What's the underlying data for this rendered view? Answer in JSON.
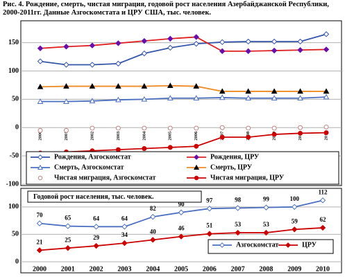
{
  "chart_data": [
    {
      "type": "line",
      "title": "Рис. 4. Рождение, смерть, чистая миграция, годовой рост населения Азербайджанской Республики, 2000-2011гг. Данные Азгоскомстата и ЦРУ США, тыс. человек.",
      "categories": [
        "2000",
        "2001",
        "2002",
        "2003",
        "2004",
        "2005",
        "2006",
        "2007",
        "2008",
        "2009",
        "2010",
        "2011"
      ],
      "series": [
        {
          "name": "Рождения, Азгоскомстат",
          "color": "#3355aa",
          "marker": "diamond-open",
          "marker_color": "#3355aa",
          "show_line": true,
          "values": [
            117,
            111,
            111,
            113,
            131,
            141,
            148,
            151,
            152,
            152,
            152,
            165
          ]
        },
        {
          "name": "Рождения, ЦРУ",
          "color": "#e02020",
          "marker": "diamond",
          "marker_color": "#6a0dad",
          "show_line": true,
          "values": [
            140,
            143,
            145,
            149,
            153,
            157,
            160,
            135,
            135,
            136,
            137,
            138
          ]
        },
        {
          "name": "Смерть, Азгоскомстат",
          "color": "#4a6fc0",
          "marker": "triangle-open",
          "marker_color": "#4a6fc0",
          "show_line": true,
          "values": [
            46,
            46,
            47,
            49,
            50,
            52,
            52,
            53,
            52,
            52,
            52,
            54
          ]
        },
        {
          "name": "Смерть, ЦРУ",
          "color": "#f08a24",
          "marker": "triangle",
          "marker_color": "#000000",
          "show_line": true,
          "values": [
            72,
            73,
            73,
            73,
            73,
            74,
            73,
            64,
            64,
            64,
            64,
            64
          ]
        },
        {
          "name": "Чистая миграция, Азгоскомстат",
          "color": "#c08080",
          "marker": "circle-open",
          "marker_color": "#c08080",
          "show_line": false,
          "values": [
            -5,
            -5,
            -1,
            -1,
            -1,
            -1,
            -1,
            0,
            -1,
            -1,
            0,
            1
          ]
        },
        {
          "name": "Чистая миграция, ЦРУ",
          "color": "#cc0000",
          "marker": "circle",
          "marker_color": "#cc0000",
          "show_line": true,
          "values": [
            -45,
            -43,
            -41,
            -39,
            -37,
            -35,
            -33,
            -17,
            -17,
            -12,
            -10,
            -9
          ]
        }
      ],
      "ylim": [
        -100,
        185
      ],
      "yticks": [
        -100,
        -50,
        0,
        50,
        100,
        150
      ],
      "grid": true
    },
    {
      "type": "line",
      "title": "Годовой рост населения, тыс. человек.",
      "categories": [
        "2000",
        "2001",
        "2002",
        "2003",
        "2004",
        "2005",
        "2006",
        "2007",
        "2008",
        "2009",
        "2010"
      ],
      "series": [
        {
          "name": "Азгоскомстат",
          "color": "#4a6fc0",
          "marker": "diamond-open",
          "marker_color": "#4a6fc0",
          "show_line": true,
          "values": [
            70,
            65,
            64,
            64,
            82,
            90,
            97,
            98,
            99,
            100,
            112
          ]
        },
        {
          "name": "ЦРУ",
          "color": "#cc0000",
          "marker": "diamond",
          "marker_color": "#cc0000",
          "show_line": true,
          "values": [
            21,
            25,
            29,
            34,
            40,
            46,
            51,
            53,
            53,
            59,
            62
          ]
        }
      ],
      "ylim": [
        0,
        120
      ],
      "yticks": [
        0,
        50,
        100
      ],
      "grid": true,
      "value_labels_shown": true
    }
  ]
}
